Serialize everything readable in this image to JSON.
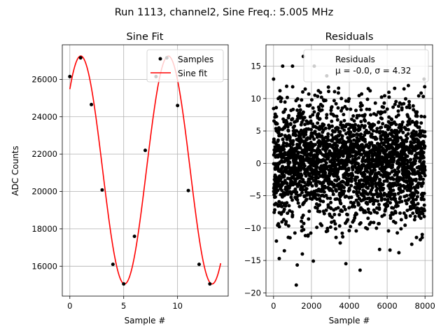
{
  "figure": {
    "suptitle": "Run 1113, channel2, Sine Freq.: 5.005 MHz"
  },
  "chart_data": [
    {
      "type": "line",
      "title": "Sine Fit",
      "xlabel": "Sample #",
      "ylabel": "ADC Counts",
      "xlim": [
        -0.7,
        14.7
      ],
      "ylim": [
        14400,
        27850
      ],
      "xticks": [
        "0",
        "5",
        "10"
      ],
      "yticks": [
        "16000",
        "18000",
        "20000",
        "22000",
        "24000",
        "26000"
      ],
      "xtick_values": [
        0,
        5,
        10
      ],
      "ytick_values": [
        16000,
        18000,
        20000,
        22000,
        24000,
        26000
      ],
      "grid": true,
      "legend_position": "top-right",
      "series": [
        {
          "name": "Samples",
          "kind": "scatter",
          "color": "#000000",
          "x": [
            0,
            1,
            2,
            3,
            4,
            5,
            6,
            7,
            8,
            9,
            10,
            11,
            12,
            13
          ],
          "y": [
            26150,
            27150,
            24650,
            20080,
            16100,
            15050,
            17600,
            22200,
            26150,
            27150,
            24600,
            20050,
            16100,
            15050
          ]
        },
        {
          "name": "Sine fit",
          "kind": "line",
          "color": "#ff0000",
          "function": {
            "offset": 21150,
            "amplitude": 6100,
            "period": 8.13,
            "phase_shift": -1.02,
            "x_range": [
              0,
              14
            ]
          }
        }
      ]
    },
    {
      "type": "scatter",
      "title": "Residuals",
      "xlabel": "Sample #",
      "ylabel": "",
      "xlim": [
        -400,
        8400
      ],
      "ylim": [
        -20.5,
        18.3
      ],
      "xticks": [
        "0",
        "2000",
        "4000",
        "6000",
        "8000"
      ],
      "yticks": [
        "−20",
        "−15",
        "−10",
        "−5",
        "0",
        "5",
        "10",
        "15"
      ],
      "xtick_values": [
        0,
        2000,
        4000,
        6000,
        8000
      ],
      "ytick_values": [
        -20,
        -15,
        -10,
        -5,
        0,
        5,
        10,
        15
      ],
      "grid": true,
      "legend_position": "top-right",
      "series": [
        {
          "name": "Residuals",
          "legend_stats": "μ = -0.0, σ = 4.32",
          "color": "#000000",
          "sample_count": 8000,
          "mean": 0.0,
          "std": 4.32,
          "outliers": [
            {
              "x": 0,
              "y": 13
            },
            {
              "x": 250,
              "y": 10
            },
            {
              "x": 480,
              "y": 15
            },
            {
              "x": 1000,
              "y": 15
            },
            {
              "x": 1570,
              "y": 16.5
            },
            {
              "x": 2150,
              "y": 15
            },
            {
              "x": 2810,
              "y": 13.5
            },
            {
              "x": 5100,
              "y": 11.2
            },
            {
              "x": 7120,
              "y": 12
            },
            {
              "x": 7950,
              "y": 13
            },
            {
              "x": 1200,
              "y": -18.8
            },
            {
              "x": 1250,
              "y": -15.7
            },
            {
              "x": 150,
              "y": -12
            },
            {
              "x": 300,
              "y": -14.7
            },
            {
              "x": 570,
              "y": -13.5
            },
            {
              "x": 870,
              "y": -11.5
            },
            {
              "x": 1520,
              "y": -14
            },
            {
              "x": 2100,
              "y": -15.1
            },
            {
              "x": 3520,
              "y": -12.3
            },
            {
              "x": 3820,
              "y": -15.5
            },
            {
              "x": 4570,
              "y": -16.5
            },
            {
              "x": 5600,
              "y": -13.3
            },
            {
              "x": 6150,
              "y": -13.4
            },
            {
              "x": 6620,
              "y": -13.8
            },
            {
              "x": 7300,
              "y": -12.5
            },
            {
              "x": 7750,
              "y": -11.8
            }
          ]
        }
      ]
    }
  ]
}
